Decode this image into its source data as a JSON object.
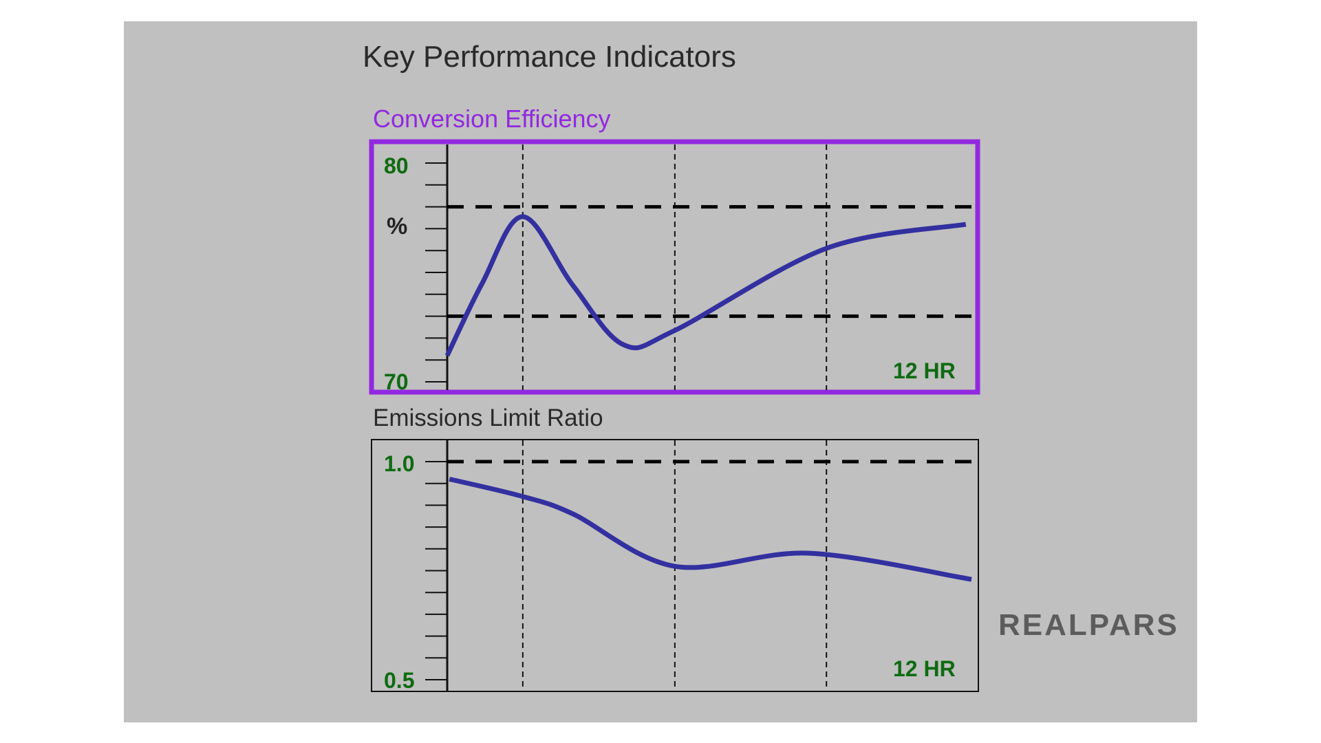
{
  "title": "Key Performance Indicators",
  "brand": "REALPARS",
  "colors": {
    "accent_purple": "#9228e0",
    "curve": "#3330a0",
    "label_green": "#0e6b10",
    "panel": "#c0c0c0"
  },
  "chart_data": [
    {
      "type": "line",
      "title": "Conversion Efficiency",
      "ylabel": "%",
      "xlabel": "12 HR",
      "xlim": [
        0,
        12
      ],
      "ylim": [
        70,
        80
      ],
      "ytick_labels": [
        "80",
        "70"
      ],
      "limit_lines": [
        78,
        73
      ],
      "grid_x": [
        1.73,
        5.21,
        8.68
      ],
      "x": [
        0,
        0.8,
        1.73,
        2.88,
        4.03,
        5.21,
        8.68,
        11.87
      ],
      "values": [
        71.2,
        74.5,
        77.55,
        74.4,
        71.7,
        72.35,
        76.1,
        77.2
      ]
    },
    {
      "type": "line",
      "title": "Emissions Limit Ratio",
      "xlabel": "12 HR",
      "xlim": [
        0,
        12
      ],
      "ylim": [
        0.5,
        1.0
      ],
      "ytick_labels": [
        "1.0",
        "0.5"
      ],
      "limit_lines": [
        1.0
      ],
      "grid_x": [
        1.73,
        5.21,
        8.68
      ],
      "x": [
        0.05,
        1.73,
        2.88,
        5.21,
        8.28,
        12
      ],
      "values": [
        0.96,
        0.92,
        0.88,
        0.76,
        0.79,
        0.73
      ]
    }
  ]
}
